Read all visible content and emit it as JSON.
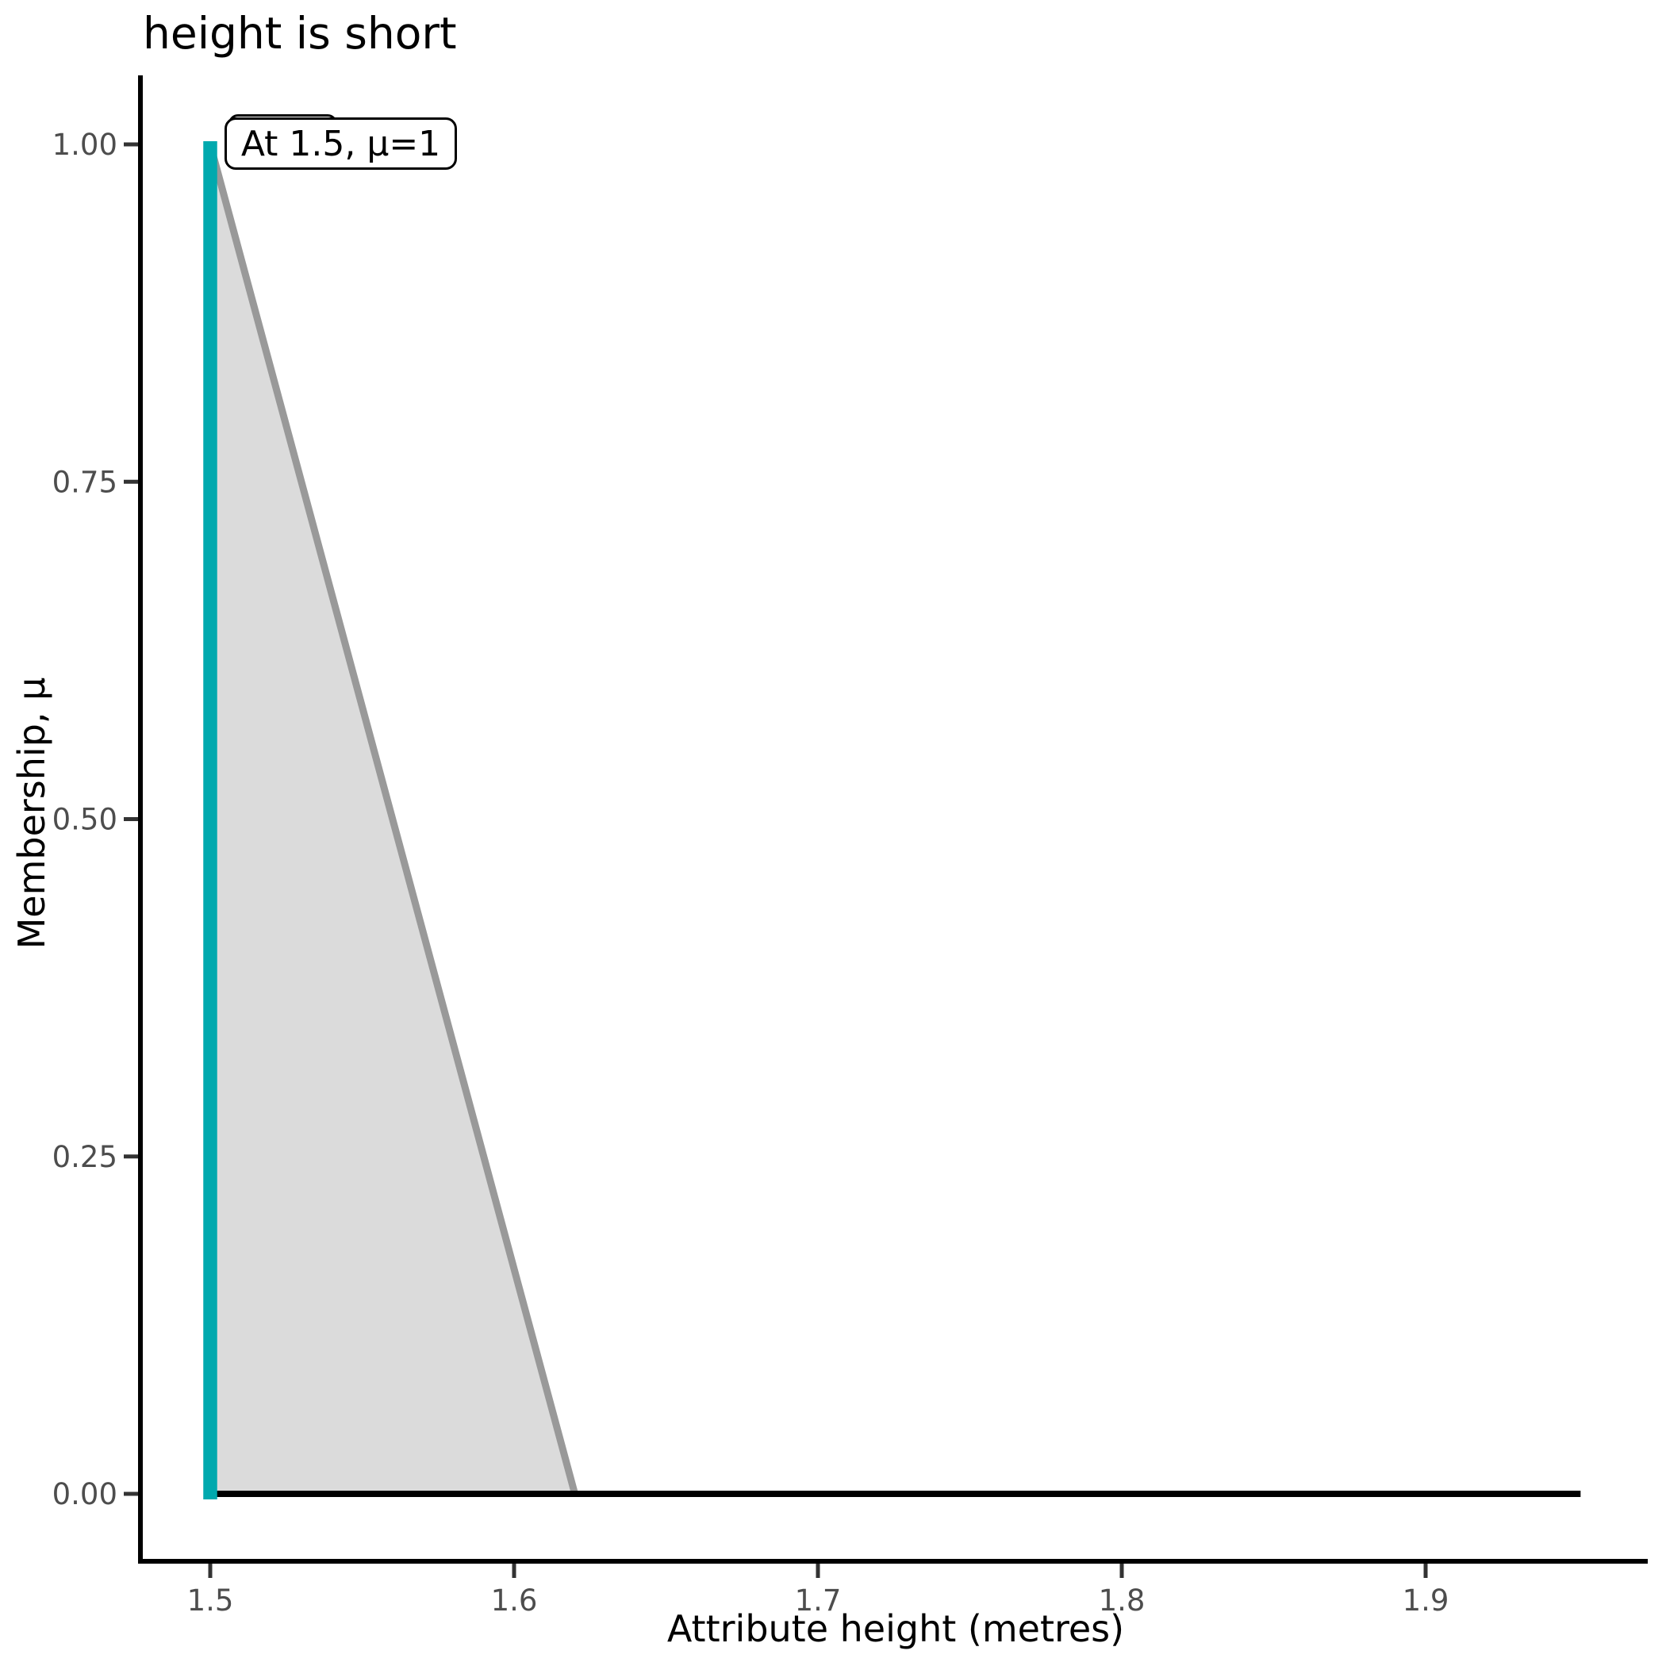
{
  "chart_data": {
    "type": "area",
    "title": "height is short",
    "xlabel": "Attribute height (metres)",
    "ylabel": "Membership, μ",
    "x_tick_labels": [
      "1.5",
      "1.6",
      "1.7",
      "1.8",
      "1.9"
    ],
    "x_tick_values": [
      1.5,
      1.6,
      1.7,
      1.8,
      1.9
    ],
    "y_tick_labels": [
      "0.00",
      "0.25",
      "0.50",
      "0.75",
      "1.00"
    ],
    "y_tick_values": [
      0.0,
      0.25,
      0.5,
      0.75,
      1.0
    ],
    "xlim": [
      1.477,
      1.972
    ],
    "ylim": [
      -0.05,
      1.05
    ],
    "grid": false,
    "legend": "none",
    "series": [
      {
        "name": "short-membership-curve",
        "type": "line",
        "color": "#999999",
        "fill": "#dbdbdb",
        "points": [
          [
            1.5,
            1.0
          ],
          [
            1.62,
            0.0
          ]
        ]
      },
      {
        "name": "zero-baseline",
        "type": "line",
        "color": "#000000",
        "points": [
          [
            1.5,
            0.0
          ],
          [
            1.951,
            0.0
          ]
        ]
      },
      {
        "name": "membership-at-value",
        "type": "vline",
        "color": "#00a9ae",
        "x": 1.5,
        "y_from": 0.0,
        "y_to": 1.0
      }
    ],
    "annotation": {
      "label": "At 1.5, μ=1",
      "x": 1.5,
      "y": 1.0
    }
  },
  "colors": {
    "accent_teal": "#00a9ae",
    "curve_gray": "#999999",
    "area_fill": "#dbdbdb",
    "tick_text": "#4d4d4d",
    "axis_line": "#000000"
  }
}
